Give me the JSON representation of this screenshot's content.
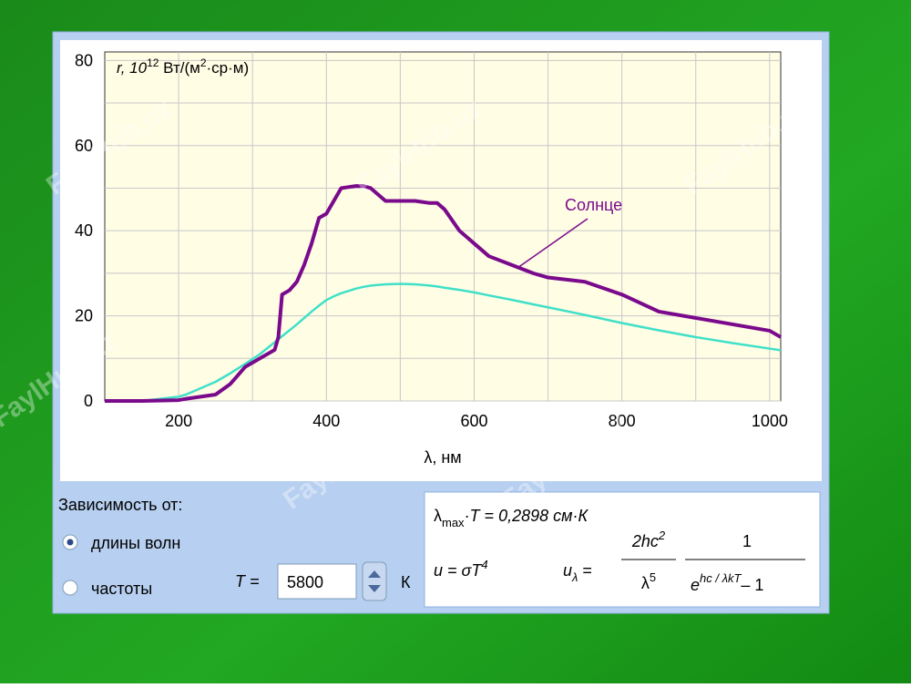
{
  "chart_data": {
    "type": "line",
    "ylabel": [
      "r, 10",
      "12",
      " Вт/(м",
      "2",
      "·ср·м)"
    ],
    "xlabel": "λ, нм",
    "annotation": "Солнце",
    "x": [
      100,
      150,
      200,
      210,
      250,
      270,
      290,
      310,
      330,
      335,
      340,
      350,
      360,
      370,
      380,
      390,
      400,
      410,
      420,
      440,
      450,
      460,
      480,
      500,
      520,
      540,
      550,
      560,
      580,
      600,
      620,
      650,
      680,
      700,
      750,
      800,
      850,
      900,
      950,
      1000,
      1015
    ],
    "series": [
      {
        "color": "#40e0c8",
        "values": [
          0,
          0,
          1,
          1.5,
          4.5,
          6.5,
          8.7,
          11,
          13.8,
          14.5,
          15.2,
          16.6,
          18,
          19.5,
          21,
          22.4,
          23.7,
          24.6,
          25.3,
          26.4,
          26.8,
          27.1,
          27.4,
          27.5,
          27.4,
          27.1,
          26.9,
          26.6,
          26.1,
          25.5,
          24.8,
          23.8,
          22.7,
          22,
          20.2,
          18.3,
          16.6,
          15,
          13.6,
          12.3,
          11.9
        ]
      },
      {
        "color": "#7a0a8c",
        "values": [
          0,
          0,
          0.2,
          0.5,
          1.5,
          4,
          8,
          10,
          12,
          15,
          25,
          26,
          28,
          32,
          37,
          43,
          44,
          47,
          50,
          50.5,
          50.5,
          50,
          47,
          47,
          47,
          46.5,
          46.5,
          45,
          40,
          37,
          34,
          32,
          30,
          29,
          28,
          25,
          21,
          19.5,
          18,
          16.5,
          15
        ]
      }
    ],
    "xlim": [
      100,
      1015
    ],
    "ylim": [
      0,
      82
    ],
    "xticks": [
      200,
      400,
      600,
      800,
      1000
    ],
    "yticks": [
      0,
      20,
      40,
      60,
      80
    ],
    "xminorticks": [
      300,
      500,
      700,
      900
    ],
    "yminorticks": [
      10,
      30,
      50,
      70
    ],
    "grid": true
  },
  "controls": {
    "title": "Зависимость от:",
    "options": [
      {
        "label": "длины волн",
        "checked": true
      },
      {
        "label": "частоты",
        "checked": false
      }
    ],
    "temperature": {
      "symbol": "T =",
      "value": "5800",
      "unit": "К"
    }
  },
  "formulas": {
    "wien": [
      "λ",
      "max",
      "·T = 0,2898 см·К"
    ],
    "stefan": [
      "u = σT",
      "4"
    ],
    "planck": {
      "lhs": [
        "u",
        "λ",
        " ="
      ],
      "num1": [
        "2hc",
        "2"
      ],
      "den1": [
        "λ",
        "5"
      ],
      "num2": "1",
      "den2": [
        "e",
        "hc / λkT",
        "– 1"
      ]
    }
  },
  "watermark": "FaylHub.uz"
}
